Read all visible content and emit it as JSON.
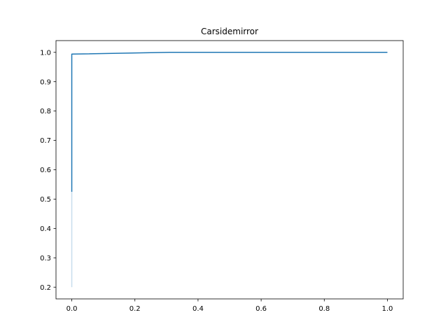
{
  "chart_data": {
    "type": "line",
    "title": "Carsidemirror",
    "xlabel": "",
    "ylabel": "",
    "xlim": [
      -0.05,
      1.05
    ],
    "ylim": [
      0.16,
      1.04
    ],
    "x_ticks": [
      0.0,
      0.2,
      0.4,
      0.6,
      0.8,
      1.0
    ],
    "x_tick_labels": [
      "0.0",
      "0.2",
      "0.4",
      "0.6",
      "0.8",
      "1.0"
    ],
    "y_ticks": [
      0.2,
      0.3,
      0.4,
      0.5,
      0.6,
      0.7,
      0.8,
      0.9,
      1.0
    ],
    "y_tick_labels": [
      "0.2",
      "0.3",
      "0.4",
      "0.5",
      "0.6",
      "0.7",
      "0.8",
      "0.9",
      "1.0"
    ],
    "grid": false,
    "legend": "none",
    "series": [
      {
        "color": "#1f77b4",
        "points": [
          {
            "x": 0.0,
            "y": 0.525
          },
          {
            "x": 0.0,
            "y": 0.994
          },
          {
            "x": 0.31,
            "y": 1.0
          },
          {
            "x": 1.0,
            "y": 1.0
          }
        ]
      }
    ],
    "band": {
      "color": "#1f77b4",
      "opacity": 0.25,
      "x": 0.0,
      "y_from": 0.2,
      "y_to": 0.525
    }
  }
}
